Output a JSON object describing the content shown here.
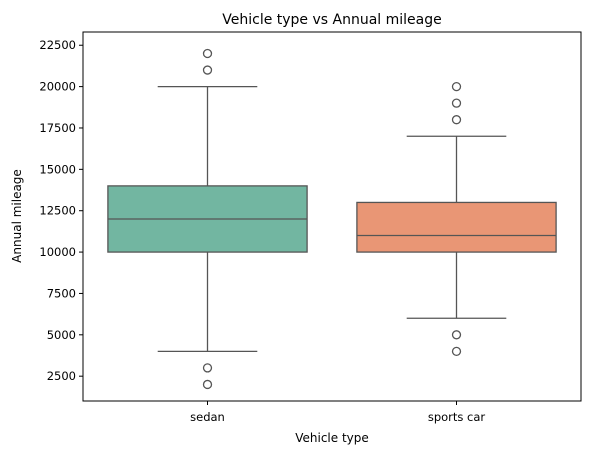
{
  "chart_data": {
    "type": "box",
    "title": "Vehicle type vs Annual mileage",
    "xlabel": "Vehicle type",
    "ylabel": "Annual mileage",
    "ylim": [
      1000,
      23300
    ],
    "yticks": [
      2500,
      5000,
      7500,
      10000,
      12500,
      15000,
      17500,
      20000,
      22500
    ],
    "grid": false,
    "categories": [
      "sedan",
      "sports car"
    ],
    "boxes": [
      {
        "category": "sedan",
        "color": "#72b6a1",
        "whisker_low": 4000,
        "q1": 10000,
        "median": 12000,
        "q3": 14000,
        "whisker_high": 20000,
        "outliers": [
          22000,
          21000,
          3000,
          2000
        ]
      },
      {
        "category": "sports car",
        "color": "#e99675",
        "whisker_low": 6000,
        "q1": 10000,
        "median": 11000,
        "q3": 13000,
        "whisker_high": 17000,
        "outliers": [
          20000,
          19000,
          18000,
          5000,
          4000
        ]
      }
    ],
    "line_color": "#555555"
  }
}
